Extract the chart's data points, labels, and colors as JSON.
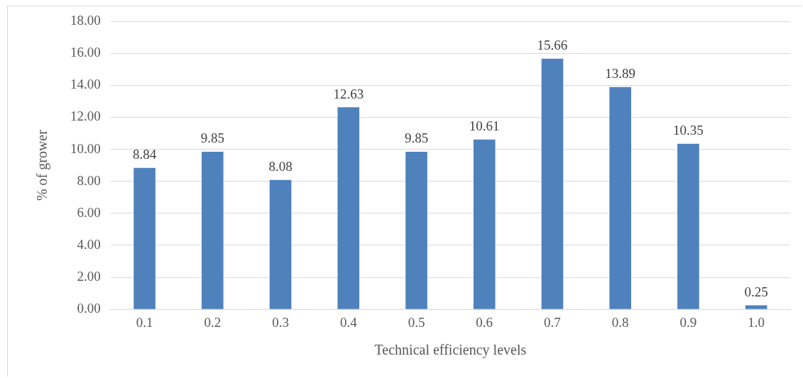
{
  "chart_data": {
    "type": "bar",
    "xlabel": "Technical efficiency levels",
    "ylabel": "% of grower",
    "categories": [
      "0.1",
      "0.2",
      "0.3",
      "0.4",
      "0.5",
      "0.6",
      "0.7",
      "0.8",
      "0.9",
      "1.0"
    ],
    "values": [
      8.84,
      9.85,
      8.08,
      12.63,
      9.85,
      10.61,
      15.66,
      13.89,
      10.35,
      0.25
    ],
    "color": "#4f81bd",
    "ylim": [
      0,
      18
    ],
    "yticks": [
      {
        "value": 0,
        "label": "0.00"
      },
      {
        "value": 2,
        "label": "2.00"
      },
      {
        "value": 4,
        "label": "4.00"
      },
      {
        "value": 6,
        "label": "6.00"
      },
      {
        "value": 8,
        "label": "8.00"
      },
      {
        "value": 10,
        "label": "10.00"
      },
      {
        "value": 12,
        "label": "12.00"
      },
      {
        "value": 14,
        "label": "14.00"
      },
      {
        "value": 16,
        "label": "16.00"
      },
      {
        "value": 18,
        "label": "18.00"
      }
    ],
    "grid": "y",
    "data_labels": true
  }
}
